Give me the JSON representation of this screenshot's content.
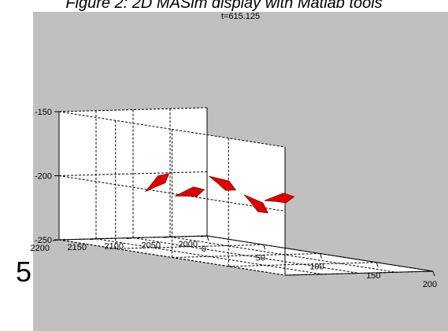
{
  "caption": "Figure 2: 2D MASim display with Matlab tools",
  "stray_glyph": "5.",
  "chart_data": {
    "type": "scatter",
    "title": "t=615.125",
    "xlabel": "",
    "ylabel": "",
    "zlabel": "",
    "xlim": [
      0,
      200
    ],
    "ylim": [
      2000,
      2200
    ],
    "zlim": [
      -250,
      -150
    ],
    "x_ticks": [
      0,
      50,
      100,
      150,
      200
    ],
    "y_ticks": [
      2000,
      2050,
      2100,
      2150,
      2200
    ],
    "z_ticks": [
      -250,
      -200,
      -150
    ],
    "grid": true,
    "marker": "arrow",
    "marker_color": "#e00000",
    "background_color": "#c0c0c0",
    "pane_color": "#ffffff",
    "points": [
      {
        "x": 45,
        "y": 2135,
        "z": -200,
        "heading": -45
      },
      {
        "x": 60,
        "y": 2070,
        "z": -200,
        "heading": 20
      },
      {
        "x": 100,
        "y": 2175,
        "z": -200,
        "heading": -20
      },
      {
        "x": 140,
        "y": 2115,
        "z": -200,
        "heading": -15
      },
      {
        "x": 165,
        "y": 2185,
        "z": -200,
        "heading": 30
      }
    ]
  }
}
